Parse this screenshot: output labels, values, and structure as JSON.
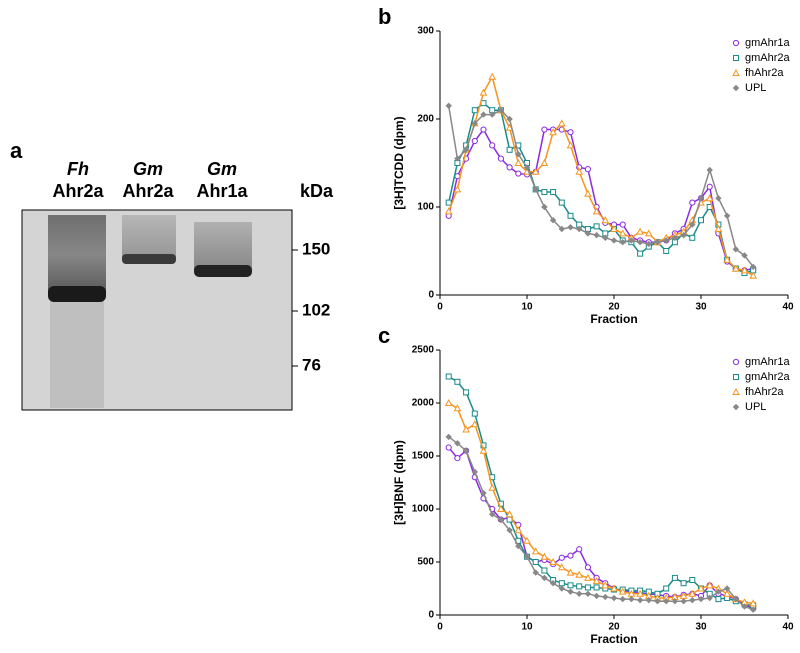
{
  "gel": {
    "label": "a",
    "lanes": [
      {
        "species": "Fh",
        "protein": "Ahr2a"
      },
      {
        "species": "Gm",
        "protein": "Ahr2a"
      },
      {
        "species": "Gm",
        "protein": "Ahr1a"
      }
    ],
    "unit": "kDa",
    "markers": [
      150,
      102,
      76
    ]
  },
  "chart_data": [
    {
      "type": "line",
      "label": "b",
      "ylabel": "[3H]TCDD (dpm)",
      "xlabel": "Fraction",
      "legend": "top-right",
      "x": [
        1,
        2,
        3,
        4,
        5,
        6,
        7,
        8,
        9,
        10,
        11,
        12,
        13,
        14,
        15,
        16,
        17,
        18,
        19,
        20,
        21,
        22,
        23,
        24,
        25,
        26,
        27,
        28,
        29,
        30,
        31,
        32,
        33,
        34,
        35,
        36
      ],
      "xlim": [
        0,
        40
      ],
      "xticks": [
        0,
        10,
        20,
        30,
        40
      ],
      "ylim": [
        0,
        300
      ],
      "yticks": [
        0,
        100,
        200,
        300
      ],
      "series": [
        {
          "name": "gmAhr1a",
          "color": "#8a2be2",
          "marker": "circle",
          "values": [
            90,
            135,
            155,
            175,
            188,
            170,
            155,
            145,
            138,
            137,
            140,
            188,
            188,
            188,
            185,
            145,
            143,
            100,
            82,
            80,
            80,
            65,
            62,
            60,
            60,
            62,
            70,
            75,
            105,
            110,
            123,
            70,
            38,
            30,
            28,
            30
          ]
        },
        {
          "name": "gmAhr2a",
          "color": "#1a8a8a",
          "marker": "square",
          "values": [
            105,
            150,
            170,
            210,
            218,
            210,
            210,
            165,
            170,
            150,
            120,
            117,
            117,
            105,
            90,
            80,
            75,
            78,
            70,
            75,
            62,
            60,
            47,
            55,
            60,
            50,
            60,
            70,
            65,
            85,
            100,
            80,
            40,
            30,
            25,
            28
          ]
        },
        {
          "name": "fhAhr2a",
          "color": "#f7941d",
          "marker": "triangle",
          "values": [
            95,
            120,
            165,
            195,
            230,
            248,
            210,
            190,
            150,
            140,
            140,
            150,
            185,
            195,
            170,
            140,
            115,
            95,
            85,
            75,
            70,
            65,
            72,
            70,
            60,
            65,
            68,
            72,
            85,
            105,
            110,
            75,
            40,
            30,
            28,
            22
          ]
        },
        {
          "name": "UPL",
          "color": "#888888",
          "marker": "diamond",
          "values": [
            215,
            155,
            165,
            195,
            205,
            205,
            210,
            200,
            160,
            145,
            120,
            100,
            85,
            75,
            77,
            75,
            70,
            68,
            65,
            62,
            60,
            62,
            60,
            58,
            60,
            62,
            65,
            68,
            80,
            110,
            142,
            110,
            90,
            52,
            45,
            32
          ]
        }
      ]
    },
    {
      "type": "line",
      "label": "c",
      "ylabel": "[3H]BNF (dpm)",
      "xlabel": "Fraction",
      "legend": "top-right",
      "x": [
        1,
        2,
        3,
        4,
        5,
        6,
        7,
        8,
        9,
        10,
        11,
        12,
        13,
        14,
        15,
        16,
        17,
        18,
        19,
        20,
        21,
        22,
        23,
        24,
        25,
        26,
        27,
        28,
        29,
        30,
        31,
        32,
        33,
        34,
        35,
        36
      ],
      "xlim": [
        0,
        40
      ],
      "xticks": [
        0,
        10,
        20,
        30,
        40
      ],
      "ylim": [
        0,
        2500
      ],
      "yticks": [
        0,
        500,
        1000,
        1500,
        2000,
        2500
      ],
      "series": [
        {
          "name": "gmAhr1a",
          "color": "#8a2be2",
          "marker": "circle",
          "values": [
            1580,
            1480,
            1550,
            1300,
            1100,
            1000,
            900,
            920,
            850,
            550,
            500,
            520,
            480,
            540,
            560,
            620,
            450,
            350,
            300,
            250,
            230,
            220,
            210,
            200,
            190,
            180,
            170,
            190,
            200,
            180,
            280,
            200,
            180,
            150,
            100,
            60
          ]
        },
        {
          "name": "gmAhr2a",
          "color": "#1a8a8a",
          "marker": "square",
          "values": [
            2250,
            2200,
            2100,
            1900,
            1600,
            1300,
            1050,
            900,
            700,
            550,
            500,
            420,
            330,
            300,
            280,
            270,
            260,
            260,
            250,
            240,
            240,
            230,
            230,
            220,
            200,
            250,
            350,
            300,
            330,
            250,
            200,
            150,
            160,
            130,
            100,
            90
          ]
        },
        {
          "name": "fhAhr2a",
          "color": "#f7941d",
          "marker": "triangle",
          "values": [
            2000,
            1950,
            1750,
            1800,
            1550,
            1200,
            1000,
            950,
            800,
            700,
            600,
            550,
            500,
            450,
            400,
            380,
            350,
            320,
            280,
            250,
            220,
            200,
            200,
            180,
            160,
            160,
            170,
            180,
            200,
            250,
            280,
            250,
            200,
            150,
            120,
            110
          ]
        },
        {
          "name": "UPL",
          "color": "#888888",
          "marker": "diamond",
          "values": [
            1680,
            1620,
            1550,
            1350,
            1150,
            950,
            900,
            800,
            650,
            550,
            400,
            350,
            300,
            250,
            220,
            200,
            200,
            180,
            170,
            160,
            150,
            150,
            140,
            140,
            130,
            130,
            130,
            130,
            140,
            150,
            160,
            220,
            250,
            150,
            80,
            50
          ]
        }
      ]
    }
  ]
}
